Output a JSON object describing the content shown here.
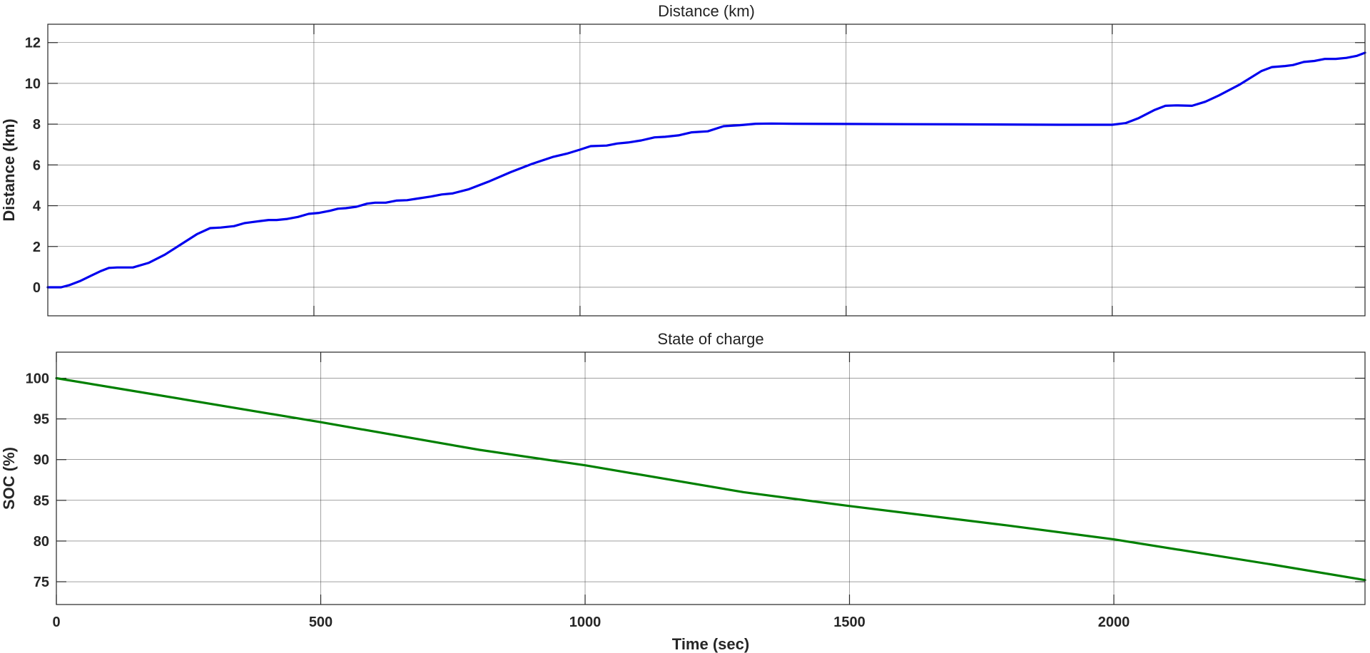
{
  "chart_data": [
    {
      "type": "line",
      "title": "Distance (km)",
      "xlabel": "",
      "ylabel": "Distance (km)",
      "xlim": [
        0,
        2475
      ],
      "ylim": [
        -1.4,
        12.9
      ],
      "xticks": [
        500,
        1000,
        1500,
        2000
      ],
      "xtick_labels_visible": false,
      "yticks": [
        0,
        2,
        4,
        6,
        8,
        10,
        12
      ],
      "ytick_labels": [
        "0",
        "2",
        "4",
        "6",
        "8",
        "10",
        "12"
      ],
      "grid": true,
      "color": "#0000ee",
      "series": [
        {
          "x": [
            0,
            25,
            40,
            60,
            80,
            100,
            115,
            130,
            160,
            190,
            220,
            250,
            280,
            305,
            325,
            350,
            370,
            385,
            400,
            415,
            430,
            450,
            470,
            490,
            510,
            530,
            545,
            560,
            580,
            600,
            615,
            635,
            655,
            675,
            695,
            720,
            740,
            760,
            790,
            830,
            870,
            910,
            950,
            975,
            1000,
            1020,
            1050,
            1070,
            1090,
            1115,
            1140,
            1160,
            1185,
            1210,
            1240,
            1270,
            1300,
            1330,
            1360,
            1400,
            1500,
            1700,
            1900,
            2000,
            2025,
            2050,
            2080,
            2100,
            2120,
            2150,
            2175,
            2200,
            2240,
            2280,
            2300,
            2325,
            2340,
            2360,
            2380,
            2400,
            2420,
            2440,
            2460,
            2475
          ],
          "y": [
            0.0,
            0.0,
            0.1,
            0.3,
            0.55,
            0.8,
            0.95,
            0.97,
            0.97,
            1.2,
            1.6,
            2.1,
            2.6,
            2.9,
            2.93,
            3.0,
            3.15,
            3.2,
            3.25,
            3.3,
            3.3,
            3.35,
            3.45,
            3.6,
            3.65,
            3.75,
            3.85,
            3.88,
            3.95,
            4.1,
            4.15,
            4.15,
            4.25,
            4.27,
            4.35,
            4.45,
            4.55,
            4.6,
            4.8,
            5.2,
            5.65,
            6.05,
            6.4,
            6.55,
            6.75,
            6.92,
            6.95,
            7.05,
            7.1,
            7.2,
            7.35,
            7.38,
            7.45,
            7.6,
            7.65,
            7.9,
            7.95,
            8.02,
            8.03,
            8.02,
            8.01,
            7.99,
            7.97,
            7.97,
            8.05,
            8.3,
            8.7,
            8.9,
            8.92,
            8.9,
            9.1,
            9.4,
            9.95,
            10.6,
            10.8,
            10.85,
            10.9,
            11.05,
            11.1,
            11.2,
            11.2,
            11.25,
            11.35,
            11.5
          ]
        }
      ]
    },
    {
      "type": "line",
      "title": "State of charge",
      "xlabel": "Time (sec)",
      "ylabel": "SOC (%)",
      "xlim": [
        0,
        2475
      ],
      "ylim": [
        72.2,
        103.2
      ],
      "xticks": [
        0,
        500,
        1000,
        1500,
        2000
      ],
      "xtick_labels": [
        "0",
        "500",
        "1000",
        "1500",
        "2000"
      ],
      "yticks": [
        75,
        80,
        85,
        90,
        95,
        100
      ],
      "ytick_labels": [
        "75",
        "80",
        "85",
        "90",
        "95",
        "100"
      ],
      "grid": true,
      "color": "#008000",
      "series": [
        {
          "x": [
            0,
            130,
            500,
            800,
            1000,
            1300,
            1500,
            1800,
            2000,
            2300,
            2475
          ],
          "y": [
            100.0,
            98.6,
            94.6,
            91.2,
            89.3,
            86.0,
            84.3,
            81.9,
            80.2,
            77.1,
            75.2
          ]
        }
      ]
    }
  ]
}
